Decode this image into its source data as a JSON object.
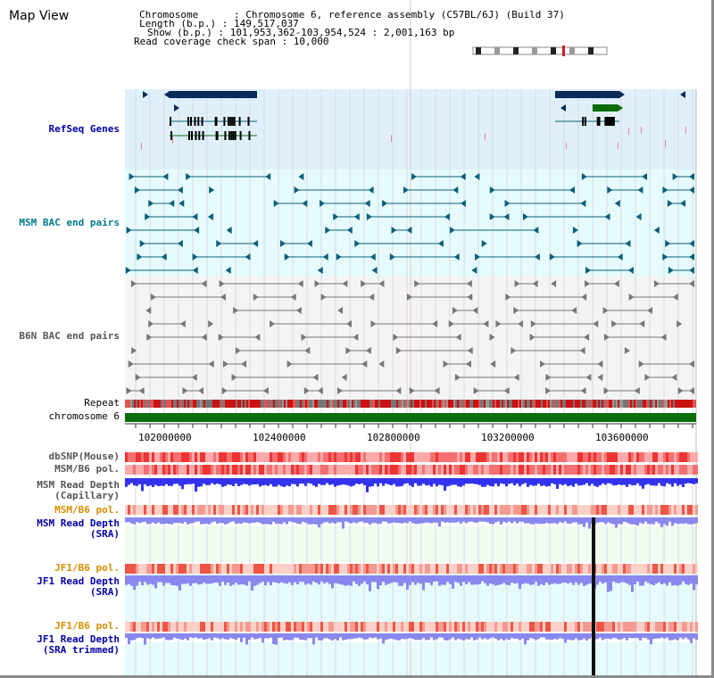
{
  "title": "Map View",
  "info": {
    "chromosome": "Chromosome      : Chromosome 6, reference assembly (C57BL/6J) (Build 37)",
    "length": "Length (b.p.) : 149,517,037",
    "show": "Show (b.p.) : 101,953,362-103,954,524 : 2,001,163 bp",
    "coverage": "Read coverage check span : 10,000"
  },
  "tracks": {
    "refseq": "RefSeq Genes",
    "msm_bac": "MSM BAC end pairs",
    "b6n_bac": "B6N BAC end pairs",
    "repeat": "Repeat",
    "chromosome": "chromosome 6",
    "dbsnp": "dbSNP(Mouse)",
    "msm_b6_pol": "MSM/B6 pol.",
    "msm_depth_cap_1": "MSM Read Depth",
    "msm_depth_cap_2": "(Capillary)",
    "msm_b6_pol_2": "MSM/B6 pol.",
    "msm_depth_sra_1": "MSM Read Depth",
    "msm_depth_sra_2": "(SRA)",
    "jf1_pol": "JF1/B6 pol.",
    "jf1_depth_1": "JF1 Read Depth",
    "jf1_depth_2": "(SRA)",
    "jf1_pol_2": "JF1/B6 pol.",
    "jf1_trim_1": "JF1 Read Depth",
    "jf1_trim_2": "(SRA trimmed)"
  },
  "axis_ticks": [
    "102000000",
    "102400000",
    "102800000",
    "103200000",
    "103600000"
  ],
  "colors": {
    "refseq_bg": "#dff0fa",
    "msm_bg": "#e6fbfb",
    "b6n_bg": "#f4f4f4",
    "sra_bg": "#effcef",
    "jf1_bg": "#e6fbfb",
    "gene_navy": "#0a2a5a",
    "gene_green": "#0a6e0a",
    "bac_teal": "#0a5f7a",
    "bac_gray": "#777777",
    "chrom_green": "#0a6e0a",
    "depth_blue": "#3333ee",
    "depth_light": "#8888ee",
    "label_blue": "#0000aa",
    "label_teal": "#007a8a",
    "label_orange": "#d98c00"
  }
}
